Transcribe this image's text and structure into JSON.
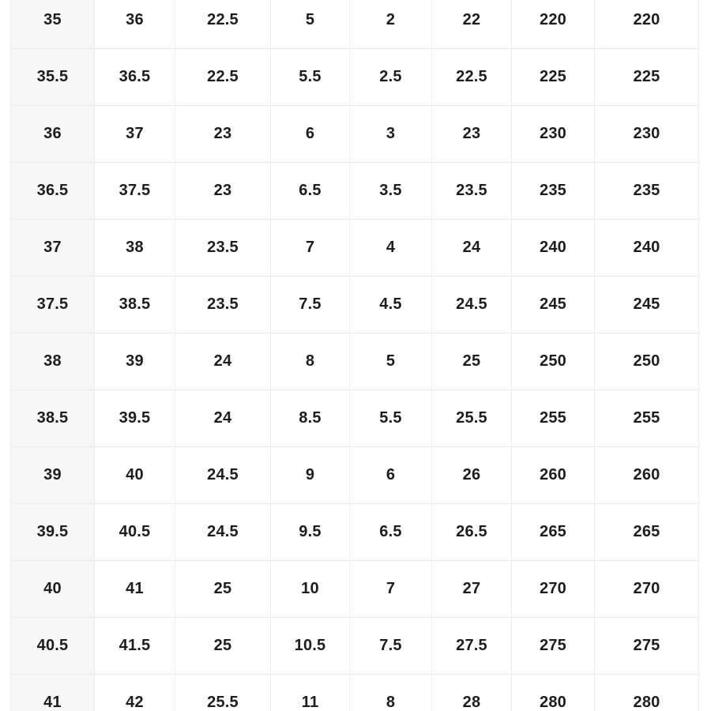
{
  "page": {
    "background": "#ffffff"
  },
  "table": {
    "colors": {
      "first_column_bg": "#f7f7f8",
      "row_line": "#e8e8ea",
      "column_line": "#ededf0",
      "text": "#1d1d1f"
    },
    "rows": [
      [
        "35",
        "36",
        "22.5",
        "5",
        "2",
        "22",
        "220",
        "220"
      ],
      [
        "35.5",
        "36.5",
        "22.5",
        "5.5",
        "2.5",
        "22.5",
        "225",
        "225"
      ],
      [
        "36",
        "37",
        "23",
        "6",
        "3",
        "23",
        "230",
        "230"
      ],
      [
        "36.5",
        "37.5",
        "23",
        "6.5",
        "3.5",
        "23.5",
        "235",
        "235"
      ],
      [
        "37",
        "38",
        "23.5",
        "7",
        "4",
        "24",
        "240",
        "240"
      ],
      [
        "37.5",
        "38.5",
        "23.5",
        "7.5",
        "4.5",
        "24.5",
        "245",
        "245"
      ],
      [
        "38",
        "39",
        "24",
        "8",
        "5",
        "25",
        "250",
        "250"
      ],
      [
        "38.5",
        "39.5",
        "24",
        "8.5",
        "5.5",
        "25.5",
        "255",
        "255"
      ],
      [
        "39",
        "40",
        "24.5",
        "9",
        "6",
        "26",
        "260",
        "260"
      ],
      [
        "39.5",
        "40.5",
        "24.5",
        "9.5",
        "6.5",
        "26.5",
        "265",
        "265"
      ],
      [
        "40",
        "41",
        "25",
        "10",
        "7",
        "27",
        "270",
        "270"
      ],
      [
        "40.5",
        "41.5",
        "25",
        "10.5",
        "7.5",
        "27.5",
        "275",
        "275"
      ],
      [
        "41",
        "42",
        "25.5",
        "11",
        "8",
        "28",
        "280",
        "280"
      ]
    ]
  }
}
